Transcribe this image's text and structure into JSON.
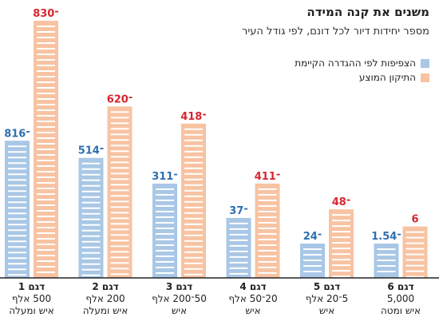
{
  "header": {
    "title": "משנים את קנה המידה",
    "subtitle": "מספר יחידות דיור לכל דונם, לפי גודל העיר"
  },
  "legend": [
    {
      "label": "הצפיפות לפי ההגדרה הקיימת",
      "color": "#a9c7e6"
    },
    {
      "label": "התיקון המוצע",
      "color": "#f8c3a2"
    }
  ],
  "colors": {
    "current_bar": "#a9c7e6",
    "proposed_bar": "#f8c3a2",
    "current_label": "#2e6fb0",
    "proposed_label": "#d7262f",
    "axis": "#222222"
  },
  "categories": [
    {
      "name": "דגם 1",
      "line2": "500 אלף",
      "line3": "איש ומעלה"
    },
    {
      "name": "דגם 2",
      "line2": "200 אלף",
      "line3": "איש ומעלה"
    },
    {
      "name": "דגם 3",
      "line2": "50־200 אלף",
      "line3": "איש"
    },
    {
      "name": "דגם 4",
      "line2": "20־50 אלף",
      "line3": "איש"
    },
    {
      "name": "דגם 5",
      "line2": "5־20 אלף",
      "line3": "איש"
    },
    {
      "name": "דגם 6",
      "line2": "5,000",
      "line3": "איש ומטה"
    }
  ],
  "chart_data": {
    "type": "bar",
    "title": "משנים את קנה המידה",
    "subtitle": "מספר יחידות דיור לכל דונם, לפי גודל העיר",
    "categories": [
      "דגם 1",
      "דגם 2",
      "דגם 3",
      "דגם 4",
      "דגם 5",
      "דגם 6"
    ],
    "series": [
      {
        "name": "הצפיפות לפי ההגדרה הקיימת",
        "labels": [
          "8־16",
          "5־14",
          "3־11",
          "3־7",
          "2־4",
          "1.5־4"
        ],
        "values": [
          16,
          14,
          11,
          7,
          4,
          4
        ]
      },
      {
        "name": "התיקון המוצע",
        "labels": [
          "8־30",
          "6־20",
          "4־18",
          "4־11",
          "4־8",
          "6"
        ],
        "values": [
          30,
          20,
          18,
          11,
          8,
          6
        ]
      }
    ],
    "ylim": [
      0,
      30
    ],
    "grid": false,
    "legend_position": "top-right"
  }
}
